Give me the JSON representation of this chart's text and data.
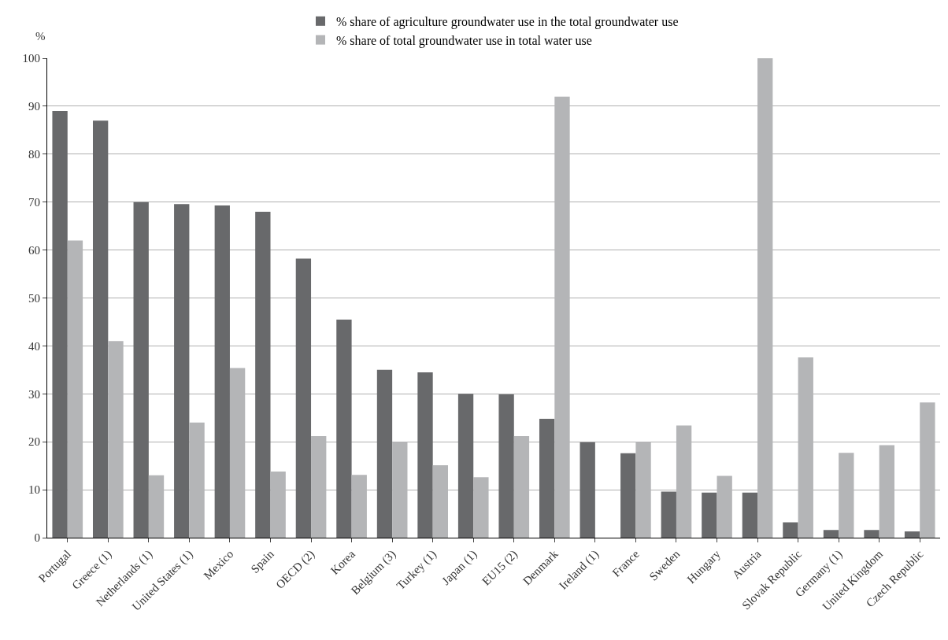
{
  "chart_data": {
    "type": "bar",
    "ylabel": "%",
    "categories": [
      "Portugal",
      "Greece (1)",
      "Netherlands (1)",
      "United States (1)",
      "Mexico",
      "Spain",
      "OECD (2)",
      "Korea",
      "Belgium (3)",
      "Turkey (1)",
      "Japan (1)",
      "EU15 (2)",
      "Denmark",
      "Ireland (1)",
      "France",
      "Sweden",
      "Hungary",
      "Austria",
      "Slovak Republic",
      "Germany (1)",
      "United Kingdom",
      "Czech Republic"
    ],
    "series": [
      {
        "name": "% share of agriculture groundwater use in the total groundwater use",
        "color": "#68696b",
        "values": [
          89,
          87,
          70,
          69.6,
          69.3,
          68,
          58.2,
          45.5,
          35,
          34.5,
          30,
          29.9,
          24.8,
          19.9,
          17.6,
          9.6,
          9.4,
          9.4,
          3.2,
          1.6,
          1.6,
          1.3
        ]
      },
      {
        "name": "% share of total groundwater use in total water use",
        "color": "#b4b5b7",
        "values": [
          62,
          41,
          13,
          24,
          35.4,
          13.8,
          21.2,
          13.1,
          20,
          15.1,
          12.6,
          21.2,
          92,
          0,
          20,
          23.4,
          12.9,
          100,
          37.6,
          17.7,
          19.3,
          28.2
        ]
      }
    ],
    "ylim": [
      0,
      100
    ],
    "yticks": [
      0,
      10,
      20,
      30,
      40,
      50,
      60,
      70,
      80,
      90,
      100
    ],
    "grid": "y",
    "legend": "top"
  }
}
